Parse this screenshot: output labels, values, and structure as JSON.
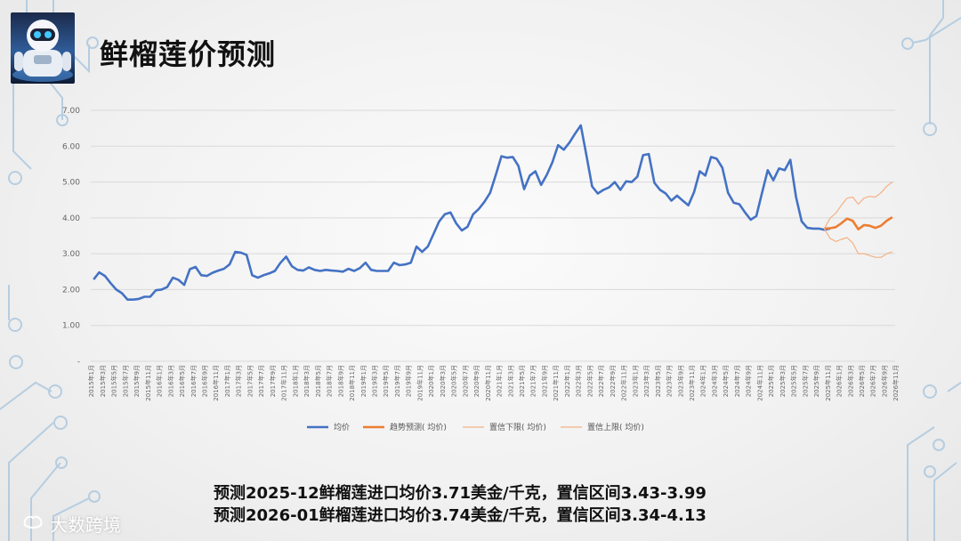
{
  "page": {
    "title": "鲜榴莲价预测",
    "notes": [
      "预测2025-12鲜榴莲进口均价3.71美金/千克，置信区间3.43-3.99",
      "预测2026-01鲜榴莲进口均价3.74美金/千克，置信区间3.34-4.13"
    ],
    "brand": "大数跨境"
  },
  "colors": {
    "actual": "#4472C4",
    "forecast": "#ED7D31",
    "bound": "#F4B183",
    "grid": "#d9d9d9",
    "axis_text": "#666666"
  },
  "chart_data": {
    "type": "line",
    "title": "",
    "xlabel": "",
    "ylabel": "",
    "ylim": [
      0,
      7
    ],
    "yticks": [
      "-",
      "1.00",
      "2.00",
      "3.00",
      "4.00",
      "5.00",
      "6.00",
      "7.00"
    ],
    "grid": true,
    "legend_position": "bottom",
    "x_labels": [
      "2015年1月",
      "2015年3月",
      "2015年5月",
      "2015年7月",
      "2015年9月",
      "2015年11月",
      "2016年1月",
      "2016年3月",
      "2016年5月",
      "2016年7月",
      "2016年9月",
      "2016年11月",
      "2017年1月",
      "2017年3月",
      "2017年5月",
      "2017年7月",
      "2017年9月",
      "2017年11月",
      "2018年1月",
      "2018年3月",
      "2018年5月",
      "2018年7月",
      "2018年9月",
      "2018年11月",
      "2019年1月",
      "2019年3月",
      "2019年5月",
      "2019年7月",
      "2019年9月",
      "2019年11月",
      "2020年1月",
      "2020年3月",
      "2020年5月",
      "2020年7月",
      "2020年9月",
      "2020年11月",
      "2021年1月",
      "2021年3月",
      "2021年5月",
      "2021年7月",
      "2021年9月",
      "2021年11月",
      "2022年1月",
      "2022年3月",
      "2022年5月",
      "2022年7月",
      "2022年9月",
      "2022年11月",
      "2023年1月",
      "2023年3月",
      "2023年5月",
      "2023年7月",
      "2023年9月",
      "2023年11月",
      "2024年1月",
      "2024年3月",
      "2024年5月",
      "2024年7月",
      "2024年9月",
      "2024年11月",
      "2025年1月",
      "2025年3月",
      "2025年5月",
      "2025年7月",
      "2025年9月",
      "2025年11月",
      "2026年1月",
      "2026年3月",
      "2026年5月",
      "2026年7月",
      "2026年9月",
      "2026年11月"
    ],
    "series": [
      {
        "name": "均价",
        "start_index": 0,
        "values": [
          2.28,
          2.48,
          2.38,
          2.18,
          2.0,
          1.9,
          1.72,
          1.72,
          1.74,
          1.8,
          1.8,
          1.98,
          2.0,
          2.07,
          2.33,
          2.27,
          2.13,
          2.57,
          2.63,
          2.4,
          2.38,
          2.47,
          2.53,
          2.58,
          2.7,
          3.05,
          3.03,
          2.97,
          2.4,
          2.33,
          2.4,
          2.45,
          2.52,
          2.75,
          2.92,
          2.65,
          2.55,
          2.53,
          2.62,
          2.55,
          2.52,
          2.55,
          2.53,
          2.52,
          2.5,
          2.58,
          2.52,
          2.6,
          2.75,
          2.55,
          2.52,
          2.52,
          2.52,
          2.75,
          2.68,
          2.7,
          2.75,
          3.2,
          3.05,
          3.2,
          3.55,
          3.9,
          4.1,
          4.15,
          3.85,
          3.65,
          3.75,
          4.1,
          4.25,
          4.45,
          4.7,
          5.2,
          5.72,
          5.68,
          5.7,
          5.45,
          4.8,
          5.18,
          5.3,
          4.92,
          5.2,
          5.55,
          6.03,
          5.9,
          6.1,
          6.35,
          6.58,
          5.75,
          4.88,
          4.68,
          4.78,
          4.85,
          5.0,
          4.78,
          5.02,
          5.0,
          5.15,
          5.75,
          5.78,
          4.98,
          4.78,
          4.68,
          4.48,
          4.62,
          4.48,
          4.35,
          4.72,
          5.3,
          5.18,
          5.7,
          5.65,
          5.4,
          4.7,
          4.42,
          4.38,
          4.15,
          3.95,
          4.05,
          4.7,
          5.33,
          5.05,
          5.38,
          5.33,
          5.62,
          4.58,
          3.9,
          3.72,
          3.7,
          3.7,
          3.67,
          3.7
        ]
      },
      {
        "name": "趋势预测( 均价)",
        "start_index": 129,
        "values": [
          3.7,
          3.71,
          3.74,
          3.85,
          3.98,
          3.92,
          3.68,
          3.8,
          3.78,
          3.72,
          3.78,
          3.92,
          4.02
        ]
      },
      {
        "name": "置信下限( 均价)",
        "start_index": 129,
        "values": [
          3.7,
          3.43,
          3.34,
          3.4,
          3.45,
          3.3,
          3.0,
          3.0,
          2.95,
          2.9,
          2.9,
          3.0,
          3.05
        ]
      },
      {
        "name": "置信上限( 均价)",
        "start_index": 129,
        "values": [
          3.7,
          3.99,
          4.13,
          4.35,
          4.55,
          4.58,
          4.38,
          4.55,
          4.6,
          4.58,
          4.7,
          4.88,
          5.0
        ]
      }
    ],
    "total_points": 142
  }
}
